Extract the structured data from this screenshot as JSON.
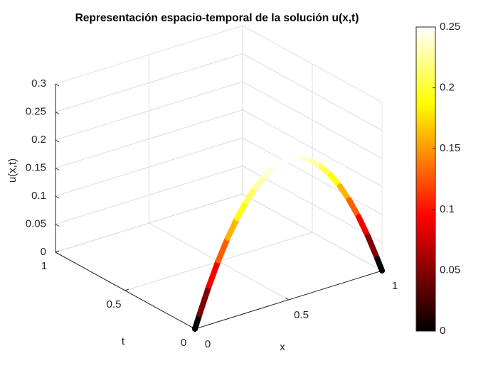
{
  "chart_data": {
    "type": "surface3d",
    "title": "Representación espacio-temporal de la solución u(x,t)",
    "x_label": "x",
    "y_label": "t",
    "z_label": "u(x,t)",
    "x": [
      0,
      0.05,
      0.1,
      0.15,
      0.2,
      0.25,
      0.3,
      0.35,
      0.4,
      0.45,
      0.5,
      0.55,
      0.6,
      0.65,
      0.7,
      0.75,
      0.8,
      0.85,
      0.9,
      0.95,
      1
    ],
    "t": 0,
    "values": [
      0,
      0.0475,
      0.09,
      0.1275,
      0.16,
      0.1875,
      0.21,
      0.2275,
      0.24,
      0.2475,
      0.25,
      0.2475,
      0.24,
      0.2275,
      0.21,
      0.1875,
      0.16,
      0.1275,
      0.09,
      0.0475,
      0
    ],
    "xlim": [
      0,
      1
    ],
    "xticks": [
      0,
      0.5,
      1
    ],
    "ylim": [
      0,
      1
    ],
    "yticks": [
      0,
      0.5,
      1
    ],
    "zlim": [
      0,
      0.3
    ],
    "zticks": [
      0,
      0.05,
      0.1,
      0.15,
      0.2,
      0.25,
      0.3
    ],
    "grid": true,
    "colormap": "hot",
    "colorbar": {
      "lim": [
        0,
        0.25
      ],
      "ticks": [
        0,
        0.05,
        0.1,
        0.15,
        0.2,
        0.25
      ]
    }
  }
}
